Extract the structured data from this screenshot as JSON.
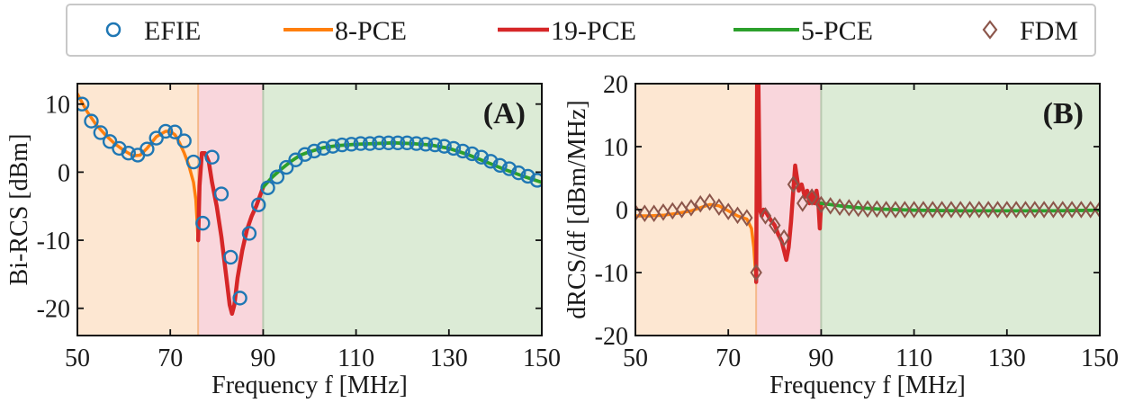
{
  "legend": {
    "entries": [
      {
        "label": "EFIE",
        "marker": "circle-icon",
        "color": "#1f77b4"
      },
      {
        "label": "8-PCE",
        "marker": "line",
        "color": "#ff7f0e"
      },
      {
        "label": "19-PCE",
        "marker": "line",
        "color": "#d62728"
      },
      {
        "label": "5-PCE",
        "marker": "line",
        "color": "#2ca02c"
      },
      {
        "label": "FDM",
        "marker": "diamond-icon",
        "color": "#8c564b"
      }
    ]
  },
  "colors": {
    "region_8pce": "#fde7d2",
    "region_19pce": "#f9d6dc",
    "region_5pce": "#dcebd6"
  },
  "chart_data": [
    {
      "type": "line",
      "panel": "(A)",
      "title": "",
      "xlabel": "Frequency f [MHz]",
      "ylabel": "Bi-RCS [dBm]",
      "xlim": [
        50,
        150
      ],
      "ylim": [
        -24,
        13
      ],
      "xticks": [
        50,
        70,
        90,
        110,
        130,
        150
      ],
      "yticks": [
        10,
        0,
        -10,
        -20
      ],
      "ytick_labels": [
        "10",
        "0",
        "-10",
        "-20"
      ],
      "regions": [
        {
          "name": "8-PCE",
          "x": [
            50,
            76
          ]
        },
        {
          "name": "19-PCE",
          "x": [
            76,
            90
          ]
        },
        {
          "name": "5-PCE",
          "x": [
            90,
            150
          ]
        }
      ],
      "series": [
        {
          "name": "8-PCE",
          "style": "line",
          "x": [
            50,
            52,
            54,
            56,
            58,
            60,
            62,
            63.5,
            65,
            67,
            69,
            70,
            71,
            72,
            73,
            74,
            75,
            75.5,
            76
          ],
          "y": [
            11.5,
            9,
            7,
            5.5,
            4.2,
            3.2,
            2.4,
            2.5,
            3.5,
            5.2,
            6,
            6,
            5.5,
            4.3,
            2.8,
            1,
            -1.5,
            -4,
            -10
          ]
        },
        {
          "name": "19-PCE",
          "style": "line",
          "x": [
            76,
            76.3,
            76.8,
            77.5,
            78.3,
            79,
            80,
            81,
            82,
            82.8,
            83.3,
            83.8,
            84.5,
            85.5,
            86.5,
            87.5,
            88.5,
            89.3,
            90
          ],
          "y": [
            -10,
            -2,
            2.8,
            2.8,
            1.5,
            -1.5,
            -5,
            -9.5,
            -15,
            -19.5,
            -20.8,
            -19.5,
            -15.5,
            -11.5,
            -8.5,
            -6.5,
            -5,
            -3.5,
            -2.2
          ]
        },
        {
          "name": "5-PCE",
          "style": "line",
          "x": [
            90,
            92,
            94,
            96,
            98,
            100,
            103,
            106,
            110,
            114,
            118,
            122,
            126,
            130,
            134,
            138,
            142,
            146,
            150
          ],
          "y": [
            -2.2,
            -0.7,
            0.5,
            1.6,
            2.5,
            3,
            3.6,
            3.9,
            4.1,
            4.2,
            4.3,
            4.2,
            4,
            3.5,
            2.6,
            1.5,
            0.4,
            -0.6,
            -1.5
          ]
        },
        {
          "name": "EFIE",
          "style": "scatter",
          "x": [
            51,
            53,
            55,
            57,
            59,
            61,
            63,
            65,
            67,
            69,
            71,
            73,
            75,
            77,
            79,
            81,
            83,
            85,
            87,
            89,
            91,
            93,
            95,
            97,
            99,
            101,
            103,
            105,
            107,
            109,
            111,
            113,
            115,
            117,
            119,
            121,
            123,
            125,
            127,
            129,
            131,
            133,
            135,
            137,
            139,
            141,
            143,
            145,
            147,
            149
          ],
          "y": [
            10,
            7.5,
            5.8,
            4.5,
            3.5,
            2.8,
            2.5,
            3.4,
            5,
            6,
            5.9,
            4.6,
            1.5,
            -7.5,
            2.2,
            -3.2,
            -12.5,
            -18.5,
            -9,
            -4.8,
            -2.3,
            -0.7,
            0.7,
            1.8,
            2.6,
            3.1,
            3.5,
            3.8,
            4,
            4.1,
            4.2,
            4.2,
            4.3,
            4.3,
            4.3,
            4.3,
            4.2,
            4.1,
            4,
            3.8,
            3.5,
            3.1,
            2.7,
            2.2,
            1.6,
            1,
            0.5,
            -0.1,
            -0.6,
            -1.2
          ]
        }
      ]
    },
    {
      "type": "line",
      "panel": "(B)",
      "title": "",
      "xlabel": "Frequency f [MHz]",
      "ylabel": "dRCS/df [dBm/MHz]",
      "xlim": [
        50,
        150
      ],
      "ylim": [
        -20,
        20
      ],
      "xticks": [
        50,
        70,
        90,
        110,
        130,
        150
      ],
      "yticks": [
        20,
        10,
        0,
        -10,
        -20
      ],
      "ytick_labels": [
        "20",
        "10",
        "0",
        "-10",
        "-20"
      ],
      "regions": [
        {
          "name": "8-PCE",
          "x": [
            50,
            76
          ]
        },
        {
          "name": "19-PCE",
          "x": [
            76,
            90
          ]
        },
        {
          "name": "5-PCE",
          "x": [
            90,
            150
          ]
        }
      ],
      "series": [
        {
          "name": "8-PCE",
          "style": "line",
          "x": [
            50,
            53,
            56,
            59,
            62,
            64,
            66,
            68,
            70,
            72,
            74,
            75,
            75.5,
            76
          ],
          "y": [
            -1,
            -1,
            -0.9,
            -0.6,
            -0.2,
            0.3,
            0.8,
            0.6,
            -0.2,
            -1,
            -1.5,
            -3,
            -6,
            -11.5
          ]
        },
        {
          "name": "19-PCE",
          "style": "line",
          "x": [
            76,
            76.2,
            76.5,
            76.8,
            77.2,
            77.6,
            78.2,
            79,
            80,
            80.8,
            81.5,
            82,
            82.5,
            83,
            83.5,
            84,
            84.4,
            84.8,
            85.2,
            85.8,
            86.5,
            87,
            87.5,
            88,
            88.5,
            89,
            89.4,
            89.7,
            90
          ],
          "y": [
            -11.5,
            20,
            20,
            0,
            -1,
            0,
            -0.5,
            -1.5,
            -2.5,
            -4,
            -5,
            -6.5,
            -8,
            -6,
            -2,
            3,
            7,
            5,
            3,
            4,
            2,
            3,
            1,
            2.5,
            1,
            3,
            1,
            -3,
            1
          ]
        },
        {
          "name": "5-PCE",
          "style": "line",
          "x": [
            90,
            94,
            98,
            102,
            106,
            110,
            120,
            130,
            140,
            150
          ],
          "y": [
            1,
            0.6,
            0.3,
            0.1,
            0,
            -0.1,
            -0.2,
            -0.2,
            -0.2,
            -0.1
          ]
        },
        {
          "name": "FDM",
          "style": "scatter",
          "x": [
            50,
            52,
            54,
            56,
            58,
            60,
            62,
            64,
            66,
            68,
            70,
            72,
            74,
            76,
            78,
            80,
            82,
            84,
            86,
            88,
            90,
            92,
            94,
            96,
            98,
            100,
            102,
            104,
            106,
            108,
            110,
            112,
            114,
            116,
            118,
            120,
            122,
            124,
            126,
            128,
            130,
            132,
            134,
            136,
            138,
            140,
            142,
            144,
            146,
            148,
            150
          ],
          "y": [
            -0.5,
            -0.6,
            -0.6,
            -0.4,
            -0.2,
            0,
            0.3,
            0.9,
            1.2,
            0.4,
            -0.3,
            -0.9,
            -1.3,
            -10,
            -1,
            -2.5,
            -4.5,
            4,
            1,
            2,
            0.8,
            0.6,
            0.4,
            0.3,
            0.2,
            0.1,
            0.1,
            0,
            0,
            0,
            0,
            0,
            0,
            0,
            0,
            0,
            0,
            0,
            0,
            0,
            0,
            0,
            0,
            0,
            0,
            0,
            0,
            0,
            0,
            0,
            0
          ]
        }
      ]
    }
  ]
}
